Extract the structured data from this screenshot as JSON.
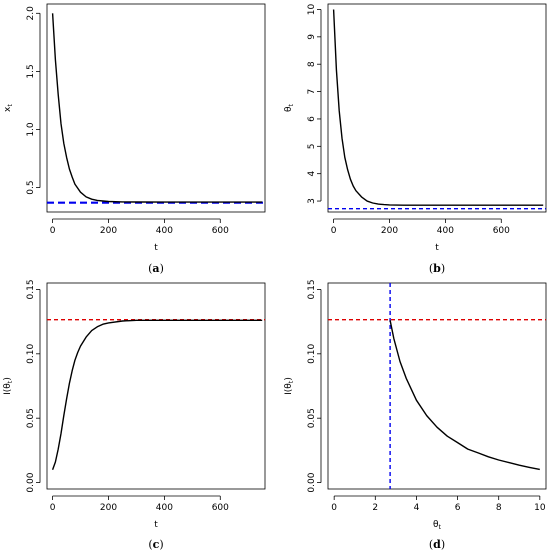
{
  "chart_data": [
    {
      "type": "line",
      "caption": "(a)",
      "xlabel": "t",
      "ylabel": "x",
      "ylabel_sub": "t",
      "xlim": [
        -20,
        760
      ],
      "ylim": [
        0.29,
        2.08
      ],
      "xticks": [
        0,
        200,
        400,
        600
      ],
      "yticks": [
        0.5,
        1.0,
        1.5,
        2.0
      ],
      "ytick_labels": [
        "0.5",
        "1.0",
        "1.5",
        "2.0"
      ],
      "curve": {
        "x": [
          0,
          10,
          20,
          30,
          40,
          50,
          60,
          70,
          80,
          100,
          120,
          140,
          160,
          180,
          200,
          250,
          300,
          400,
          500,
          600,
          750
        ],
        "y": [
          2.0,
          1.6,
          1.3,
          1.05,
          0.88,
          0.76,
          0.66,
          0.59,
          0.53,
          0.46,
          0.42,
          0.4,
          0.39,
          0.385,
          0.38,
          0.377,
          0.376,
          0.375,
          0.375,
          0.375,
          0.375
        ]
      },
      "hline": {
        "y": 0.37,
        "color": "#0000ee",
        "thick": true
      }
    },
    {
      "type": "line",
      "caption": "(b)",
      "xlabel": "t",
      "ylabel": "θ",
      "ylabel_sub": "t",
      "xlim": [
        -20,
        760
      ],
      "ylim": [
        2.6,
        10.2
      ],
      "xticks": [
        0,
        200,
        400,
        600
      ],
      "yticks": [
        3,
        4,
        5,
        6,
        7,
        8,
        9,
        10
      ],
      "ytick_labels": [
        "3",
        "4",
        "5",
        "6",
        "7",
        "8",
        "9",
        "10"
      ],
      "curve": {
        "x": [
          0,
          10,
          20,
          30,
          40,
          50,
          60,
          70,
          80,
          100,
          120,
          140,
          160,
          180,
          200,
          250,
          300,
          400,
          500,
          600,
          750
        ],
        "y": [
          10.0,
          7.8,
          6.3,
          5.3,
          4.6,
          4.15,
          3.8,
          3.55,
          3.38,
          3.15,
          3.0,
          2.93,
          2.89,
          2.87,
          2.86,
          2.85,
          2.85,
          2.85,
          2.85,
          2.85,
          2.85
        ]
      },
      "hline": {
        "y": 2.72,
        "color": "#0000ee",
        "thick": false
      }
    },
    {
      "type": "line",
      "caption": "(c)",
      "xlabel": "t",
      "ylabel": "I(θ",
      "ylabel_sub": "t",
      "ylabel_end": ")",
      "xlim": [
        -20,
        760
      ],
      "ylim": [
        -0.005,
        0.155
      ],
      "xticks": [
        0,
        200,
        400,
        600
      ],
      "yticks": [
        0.0,
        0.05,
        0.1,
        0.15
      ],
      "ytick_labels": [
        "0.00",
        "0.05",
        "0.10",
        "0.15"
      ],
      "curve": {
        "x": [
          0,
          10,
          20,
          30,
          40,
          50,
          60,
          70,
          80,
          90,
          100,
          120,
          140,
          160,
          180,
          200,
          250,
          300,
          400,
          500,
          600,
          750
        ],
        "y": [
          0.01,
          0.016,
          0.026,
          0.038,
          0.052,
          0.065,
          0.077,
          0.087,
          0.095,
          0.101,
          0.106,
          0.113,
          0.118,
          0.121,
          0.123,
          0.124,
          0.1255,
          0.126,
          0.126,
          0.126,
          0.126,
          0.126
        ]
      },
      "hline": {
        "y": 0.1265,
        "color": "#dd0000",
        "thick": false
      }
    },
    {
      "type": "line",
      "caption": "(d)",
      "xlabel": "θ",
      "xlabel_sub": "t",
      "ylabel": "I(θ",
      "ylabel_sub": "t",
      "ylabel_end": ")",
      "xlim": [
        -0.3,
        10.3
      ],
      "ylim": [
        -0.005,
        0.155
      ],
      "xticks": [
        0,
        2,
        4,
        6,
        8,
        10
      ],
      "yticks": [
        0.0,
        0.05,
        0.1,
        0.15
      ],
      "ytick_labels": [
        "0.00",
        "0.05",
        "0.10",
        "0.15"
      ],
      "curve": {
        "x": [
          2.72,
          2.9,
          3.2,
          3.5,
          4.0,
          4.5,
          5.0,
          5.5,
          6.0,
          6.5,
          7.0,
          7.5,
          8.0,
          8.5,
          9.0,
          9.5,
          10.0
        ],
        "y": [
          0.126,
          0.112,
          0.094,
          0.081,
          0.064,
          0.052,
          0.043,
          0.036,
          0.031,
          0.026,
          0.023,
          0.02,
          0.0175,
          0.0155,
          0.0135,
          0.0118,
          0.0102
        ]
      },
      "hline": {
        "y": 0.1265,
        "color": "#dd0000",
        "thick": false
      },
      "vline": {
        "x": 2.72,
        "color": "#0000ee",
        "thick": false
      }
    }
  ]
}
